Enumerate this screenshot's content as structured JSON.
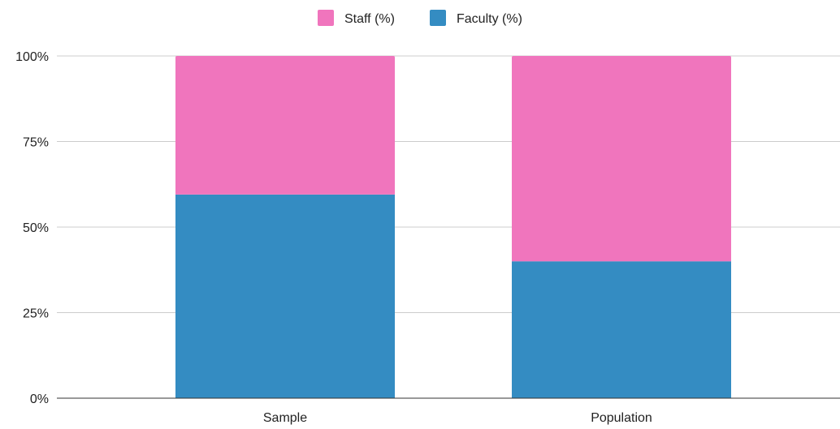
{
  "chart_data": {
    "type": "bar",
    "stacked": true,
    "stack_mode": "percent",
    "categories": [
      "Sample",
      "Population"
    ],
    "series": [
      {
        "name": "Faculty (%)",
        "values": [
          59.5,
          40
        ],
        "color": "#348cc2"
      },
      {
        "name": "Staff (%)",
        "values": [
          40.5,
          60
        ],
        "color": "#f075bd"
      }
    ],
    "legend_order": [
      "Staff (%)",
      "Faculty (%)"
    ],
    "legend_position": "top",
    "ylim": [
      0,
      100
    ],
    "yticks": [
      0,
      25,
      50,
      75,
      100
    ],
    "ytick_labels": [
      "0%",
      "25%",
      "50%",
      "75%",
      "100%"
    ],
    "grid": true,
    "title": "",
    "xlabel": "",
    "ylabel": ""
  }
}
